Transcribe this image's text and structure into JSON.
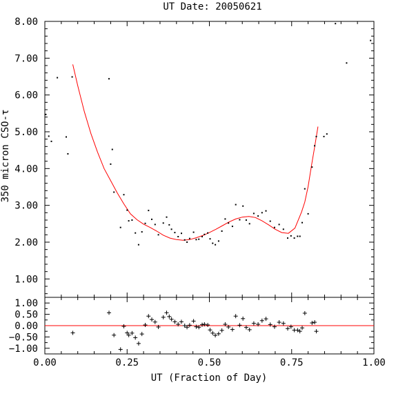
{
  "chart_data": [
    {
      "type": "scatter",
      "title": "UT Date: 20050621",
      "xlabel": "",
      "ylabel": "350 micron CSO-τ",
      "xlim": [
        0.0,
        1.0
      ],
      "ylim": [
        0.5,
        8.0
      ],
      "yticks": [
        "1.00",
        "2.00",
        "3.00",
        "4.00",
        "5.00",
        "6.00",
        "7.00",
        "8.00"
      ],
      "grid": false,
      "colors": {
        "points": "#000000",
        "fit": "#ff0000"
      },
      "series": [
        {
          "x": [
            0.003,
            0.012,
            0.02,
            0.038,
            0.065,
            0.07,
            0.083,
            0.195,
            0.2,
            0.205,
            0.21,
            0.23,
            0.24,
            0.25,
            0.255,
            0.265,
            0.275,
            0.285,
            0.295,
            0.305,
            0.315,
            0.325,
            0.335,
            0.345,
            0.36,
            0.37,
            0.378,
            0.385,
            0.395,
            0.405,
            0.415,
            0.425,
            0.432,
            0.44,
            0.452,
            0.46,
            0.468,
            0.478,
            0.485,
            0.495,
            0.502,
            0.51,
            0.518,
            0.528,
            0.538,
            0.548,
            0.558,
            0.57,
            0.58,
            0.592,
            0.602,
            0.612,
            0.622,
            0.635,
            0.648,
            0.66,
            0.672,
            0.685,
            0.698,
            0.712,
            0.725,
            0.738,
            0.748,
            0.758,
            0.768,
            0.775,
            0.782,
            0.79,
            0.8,
            0.812,
            0.82,
            0.825,
            0.848,
            0.857,
            0.883,
            0.917,
            0.99
          ],
          "values": [
            5.47,
            4.88,
            4.74,
            6.47,
            4.86,
            4.4,
            6.49,
            6.44,
            4.12,
            4.52,
            3.36,
            2.4,
            3.29,
            2.87,
            2.58,
            2.6,
            2.25,
            1.93,
            2.28,
            2.51,
            2.86,
            2.62,
            2.48,
            2.2,
            2.52,
            2.68,
            2.47,
            2.35,
            2.26,
            2.15,
            2.24,
            2.06,
            2.0,
            2.1,
            2.27,
            2.07,
            2.08,
            2.15,
            2.21,
            2.25,
            2.09,
            1.97,
            1.93,
            2.03,
            2.3,
            2.63,
            2.52,
            2.43,
            3.02,
            2.61,
            2.98,
            2.6,
            2.5,
            2.78,
            2.71,
            2.8,
            2.85,
            2.57,
            2.4,
            2.48,
            2.35,
            2.11,
            2.17,
            2.11,
            2.16,
            2.16,
            2.53,
            3.45,
            2.77,
            4.04,
            4.62,
            4.87,
            4.87,
            4.94,
            7.94,
            6.87,
            7.48
          ]
        }
      ],
      "fit": {
        "x": [
          0.085,
          0.1,
          0.12,
          0.14,
          0.16,
          0.18,
          0.2,
          0.22,
          0.24,
          0.26,
          0.28,
          0.3,
          0.32,
          0.34,
          0.36,
          0.38,
          0.4,
          0.42,
          0.44,
          0.46,
          0.48,
          0.5,
          0.52,
          0.54,
          0.56,
          0.58,
          0.6,
          0.62,
          0.64,
          0.66,
          0.68,
          0.7,
          0.72,
          0.74,
          0.76,
          0.78,
          0.79,
          0.8,
          0.81,
          0.82,
          0.83
        ],
        "values": [
          6.83,
          6.25,
          5.55,
          4.95,
          4.45,
          4.0,
          3.67,
          3.34,
          3.04,
          2.77,
          2.61,
          2.49,
          2.4,
          2.3,
          2.19,
          2.11,
          2.07,
          2.05,
          2.07,
          2.12,
          2.18,
          2.26,
          2.35,
          2.45,
          2.55,
          2.63,
          2.68,
          2.7,
          2.67,
          2.58,
          2.47,
          2.35,
          2.26,
          2.24,
          2.38,
          2.82,
          3.09,
          3.51,
          4.07,
          4.59,
          5.14
        ]
      }
    },
    {
      "type": "scatter",
      "title": "",
      "xlabel": "UT (Fraction of Day)",
      "ylabel": "",
      "xlim": [
        0.0,
        1.0
      ],
      "ylim": [
        -1.25,
        1.25
      ],
      "xticks": [
        "0.00",
        "0.25",
        "0.50",
        "0.75",
        "1.00"
      ],
      "yticks": [
        "−1.00",
        "−0.50",
        "0.00",
        "0.50",
        "1.00"
      ],
      "grid": false,
      "colors": {
        "points": "#000000",
        "zero_line": "#ff0000"
      },
      "series": [
        {
          "x": [
            0.085,
            0.195,
            0.21,
            0.23,
            0.24,
            0.25,
            0.255,
            0.265,
            0.275,
            0.285,
            0.295,
            0.305,
            0.315,
            0.325,
            0.335,
            0.345,
            0.36,
            0.37,
            0.378,
            0.385,
            0.395,
            0.405,
            0.415,
            0.425,
            0.432,
            0.44,
            0.452,
            0.46,
            0.468,
            0.478,
            0.485,
            0.495,
            0.502,
            0.51,
            0.518,
            0.528,
            0.538,
            0.548,
            0.558,
            0.57,
            0.58,
            0.592,
            0.602,
            0.612,
            0.622,
            0.635,
            0.648,
            0.66,
            0.672,
            0.685,
            0.698,
            0.712,
            0.725,
            0.738,
            0.748,
            0.758,
            0.768,
            0.775,
            0.782,
            0.79,
            0.812,
            0.82,
            0.825
          ],
          "values": [
            -0.32,
            0.57,
            -0.42,
            -1.05,
            -0.03,
            -0.32,
            -0.42,
            -0.33,
            -0.53,
            -0.79,
            -0.37,
            0.03,
            0.42,
            0.27,
            0.16,
            -0.06,
            0.37,
            0.57,
            0.4,
            0.28,
            0.17,
            0.06,
            0.17,
            0.0,
            -0.07,
            0.02,
            0.2,
            -0.05,
            -0.07,
            0.04,
            0.06,
            0.03,
            -0.19,
            -0.33,
            -0.43,
            -0.36,
            -0.21,
            0.06,
            -0.06,
            -0.17,
            0.42,
            0.02,
            0.31,
            -0.08,
            -0.18,
            0.1,
            0.06,
            0.22,
            0.3,
            0.05,
            -0.05,
            0.15,
            0.1,
            -0.13,
            -0.05,
            -0.2,
            -0.2,
            -0.25,
            -0.1,
            0.55,
            0.12,
            0.15,
            -0.25
          ]
        }
      ]
    }
  ]
}
